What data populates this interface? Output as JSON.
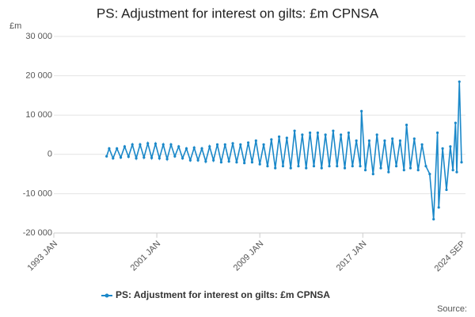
{
  "chart_data": {
    "type": "line",
    "title": "PS: Adjustment for interest on gilts: £m CPNSA",
    "y_label": "£m",
    "source": "Source:",
    "xlim": [
      1993,
      2024.67
    ],
    "xticks": [
      {
        "value": 1993,
        "label": "1993 JAN"
      },
      {
        "value": 2001,
        "label": "2001 JAN"
      },
      {
        "value": 2009,
        "label": "2009 JAN"
      },
      {
        "value": 2017,
        "label": "2017 JAN"
      },
      {
        "value": 2024.67,
        "label": "2024 SEP"
      }
    ],
    "ylim": [
      -20000,
      30000
    ],
    "yticks": [
      {
        "value": -20000,
        "label": "-20 000"
      },
      {
        "value": -10000,
        "label": "-10 000"
      },
      0,
      {
        "value": 10000,
        "label": "10 000"
      },
      {
        "value": 20000,
        "label": "20 000"
      },
      {
        "value": 30000,
        "label": "30 000"
      }
    ],
    "grid": true,
    "legend": "bottom",
    "x": [
      1997.1,
      1997.3,
      1997.6,
      1997.9,
      1998.2,
      1998.5,
      1998.8,
      1999.1,
      1999.4,
      1999.7,
      2000.0,
      2000.3,
      2000.6,
      2000.9,
      2001.2,
      2001.5,
      2001.8,
      2002.1,
      2002.4,
      2002.7,
      2003.0,
      2003.3,
      2003.6,
      2003.9,
      2004.2,
      2004.5,
      2004.8,
      2005.1,
      2005.4,
      2005.7,
      2006.0,
      2006.3,
      2006.6,
      2006.9,
      2007.2,
      2007.5,
      2007.8,
      2008.1,
      2008.4,
      2008.7,
      2009.0,
      2009.3,
      2009.6,
      2009.9,
      2010.2,
      2010.5,
      2010.8,
      2011.1,
      2011.4,
      2011.7,
      2012.0,
      2012.3,
      2012.6,
      2012.9,
      2013.2,
      2013.5,
      2013.8,
      2014.1,
      2014.4,
      2014.7,
      2015.0,
      2015.3,
      2015.6,
      2015.9,
      2016.2,
      2016.5,
      2016.8,
      2016.9,
      2017.2,
      2017.5,
      2017.8,
      2018.1,
      2018.4,
      2018.7,
      2019.0,
      2019.3,
      2019.6,
      2019.9,
      2020.2,
      2020.4,
      2020.7,
      2021.0,
      2021.3,
      2021.6,
      2021.9,
      2022.2,
      2022.5,
      2022.8,
      2022.9,
      2023.2,
      2023.5,
      2023.8,
      2024.0,
      2024.2,
      2024.3,
      2024.5,
      2024.67
    ],
    "series": [
      {
        "name": "PS: Adjustment for interest on gilts: £m CPNSA",
        "color": "#1a88c9",
        "values": [
          -500,
          1500,
          -1000,
          1500,
          -800,
          2000,
          -600,
          2500,
          -1000,
          2500,
          -800,
          2800,
          -900,
          2700,
          -1000,
          2500,
          -1200,
          2500,
          -500,
          2000,
          -1000,
          1500,
          -1500,
          1700,
          -1500,
          1500,
          -1800,
          2000,
          -1500,
          2500,
          -2000,
          2500,
          -1800,
          2800,
          -2000,
          2500,
          -2200,
          3000,
          -2000,
          3500,
          -2500,
          2500,
          -3000,
          3800,
          -3500,
          4500,
          -3000,
          4200,
          -3500,
          6000,
          -3000,
          5000,
          -3500,
          5500,
          -3000,
          5500,
          -3500,
          5000,
          -3000,
          6000,
          -3000,
          5000,
          -3500,
          5500,
          -3000,
          3500,
          -3000,
          11000,
          -4000,
          3500,
          -5000,
          5000,
          -3500,
          3500,
          -4500,
          4000,
          -3000,
          3500,
          -4000,
          7500,
          -3500,
          4000,
          -4000,
          2500,
          -3000,
          -5000,
          -16500,
          5500,
          -13500,
          1500,
          -9000,
          2000,
          -4000,
          8000,
          -4500,
          18500,
          -2000
        ]
      }
    ]
  }
}
